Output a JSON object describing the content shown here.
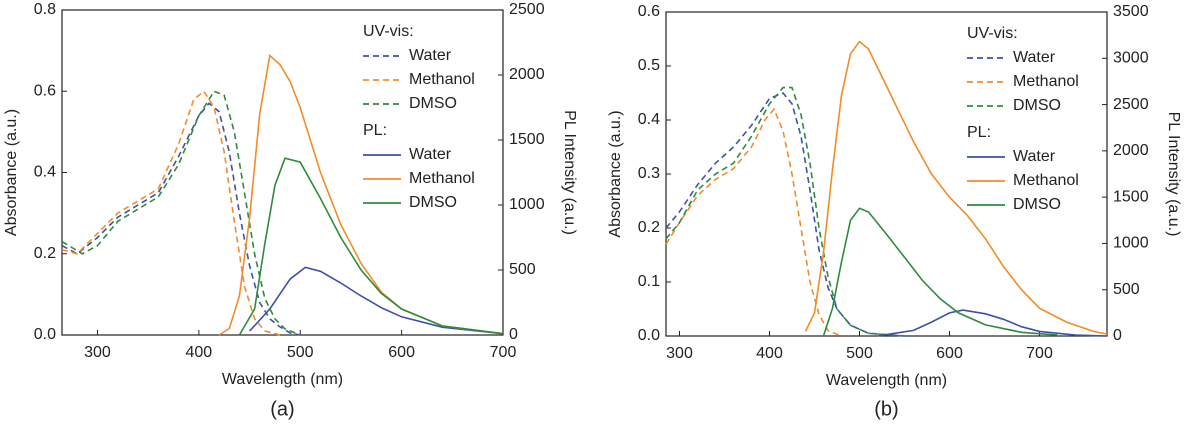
{
  "chart_data": [
    {
      "type": "line",
      "caption": "(a)",
      "x_label": "Wavelength (nm)",
      "y_label": "Absorbance (a.u.)",
      "y2_label": "PL Intensity (a.u.)",
      "xlim": [
        265,
        700
      ],
      "xticks": [
        300,
        400,
        500,
        600,
        700
      ],
      "ylim": [
        0,
        0.8
      ],
      "yticks": [
        {
          "value": 0,
          "label": "0.0"
        },
        0.2,
        0.4,
        0.6,
        0.8
      ],
      "y2lim": [
        0,
        2500
      ],
      "y2ticks": [
        0,
        500,
        1000,
        1500,
        2000,
        2500
      ],
      "legend": "upper right",
      "legend_headings": [
        "UV-vis:",
        "PL:"
      ],
      "series": [
        {
          "name": "Water",
          "color": "#3f51a5",
          "dashed": true,
          "x": [
            265,
            280,
            300,
            320,
            340,
            360,
            380,
            400,
            410,
            420,
            430,
            440,
            450,
            460,
            470,
            480,
            490,
            500
          ],
          "values": [
            0.22,
            0.2,
            0.24,
            0.29,
            0.32,
            0.35,
            0.44,
            0.54,
            0.57,
            0.55,
            0.45,
            0.3,
            0.17,
            0.08,
            0.04,
            0.02,
            0.005,
            0
          ]
        },
        {
          "name": "Methanol",
          "color": "#f28c28",
          "dashed": true,
          "x": [
            265,
            280,
            300,
            320,
            340,
            360,
            380,
            395,
            405,
            415,
            425,
            435,
            445,
            455,
            465,
            480
          ],
          "values": [
            0.21,
            0.2,
            0.25,
            0.3,
            0.33,
            0.36,
            0.47,
            0.58,
            0.6,
            0.56,
            0.45,
            0.28,
            0.12,
            0.04,
            0.01,
            0
          ]
        },
        {
          "name": "DMSO",
          "color": "#2e8b3e",
          "dashed": true,
          "x": [
            265,
            285,
            300,
            320,
            340,
            360,
            380,
            400,
            415,
            425,
            435,
            445,
            455,
            465,
            475,
            485,
            500
          ],
          "values": [
            0.23,
            0.2,
            0.22,
            0.28,
            0.31,
            0.34,
            0.42,
            0.54,
            0.6,
            0.59,
            0.5,
            0.35,
            0.2,
            0.09,
            0.04,
            0.015,
            0
          ]
        },
        {
          "name": "Water",
          "color": "#3f51a5",
          "axis": "y2",
          "x": [
            450,
            470,
            490,
            505,
            520,
            540,
            560,
            580,
            600,
            640,
            700
          ],
          "values": [
            30,
            200,
            430,
            520,
            490,
            400,
            300,
            210,
            140,
            60,
            10
          ]
        },
        {
          "name": "Methanol",
          "color": "#f28c28",
          "axis": "y2",
          "x": [
            420,
            430,
            440,
            450,
            460,
            470,
            480,
            490,
            500,
            520,
            540,
            560,
            580,
            600,
            640,
            700
          ],
          "values": [
            0,
            50,
            300,
            900,
            1700,
            2150,
            2080,
            1950,
            1750,
            1250,
            850,
            550,
            330,
            200,
            70,
            10
          ]
        },
        {
          "name": "DMSO",
          "color": "#2e8b3e",
          "axis": "y2",
          "x": [
            440,
            455,
            465,
            475,
            485,
            500,
            520,
            540,
            560,
            580,
            600,
            640,
            700
          ],
          "values": [
            0,
            200,
            700,
            1150,
            1360,
            1330,
            1050,
            750,
            500,
            320,
            200,
            70,
            10
          ]
        }
      ]
    },
    {
      "type": "line",
      "caption": "(b)",
      "x_label": "Wavelength (nm)",
      "y_label": "Absorbance (a.u.)",
      "y2_label": "PL Intensity (a.u.)",
      "xlim": [
        285,
        775
      ],
      "xticks": [
        300,
        400,
        500,
        600,
        700
      ],
      "ylim": [
        0,
        0.6
      ],
      "yticks": [
        {
          "value": 0,
          "label": "0.0"
        },
        0.1,
        0.2,
        0.3,
        0.4,
        0.5,
        0.6
      ],
      "y2lim": [
        0,
        3500
      ],
      "y2ticks": [
        0,
        500,
        1000,
        1500,
        2000,
        2500,
        3000,
        3500
      ],
      "legend": "upper right",
      "legend_headings": [
        "UV-vis:",
        "PL:"
      ],
      "series": [
        {
          "name": "Water",
          "color": "#3f51a5",
          "dashed": true,
          "x": [
            285,
            300,
            320,
            340,
            360,
            380,
            400,
            415,
            425,
            435,
            445,
            455,
            465,
            475,
            490,
            510,
            550
          ],
          "values": [
            0.2,
            0.23,
            0.28,
            0.32,
            0.35,
            0.39,
            0.44,
            0.45,
            0.43,
            0.37,
            0.27,
            0.16,
            0.09,
            0.05,
            0.02,
            0.005,
            0
          ]
        },
        {
          "name": "Methanol",
          "color": "#f28c28",
          "dashed": true,
          "x": [
            285,
            300,
            320,
            340,
            360,
            380,
            395,
            405,
            415,
            425,
            435,
            445,
            455,
            465,
            480
          ],
          "values": [
            0.17,
            0.21,
            0.26,
            0.29,
            0.31,
            0.35,
            0.4,
            0.42,
            0.38,
            0.3,
            0.2,
            0.1,
            0.04,
            0.01,
            0
          ]
        },
        {
          "name": "DMSO",
          "color": "#2e8b3e",
          "dashed": true,
          "x": [
            285,
            300,
            320,
            340,
            360,
            380,
            400,
            415,
            425,
            435,
            445,
            455,
            465,
            475,
            490,
            510,
            550
          ],
          "values": [
            0.18,
            0.21,
            0.27,
            0.3,
            0.32,
            0.37,
            0.43,
            0.46,
            0.46,
            0.41,
            0.32,
            0.2,
            0.11,
            0.05,
            0.02,
            0.005,
            0
          ]
        },
        {
          "name": "Water",
          "color": "#3f51a5",
          "axis": "y2",
          "x": [
            520,
            560,
            580,
            600,
            615,
            640,
            660,
            680,
            700,
            740,
            775
          ],
          "values": [
            0,
            60,
            150,
            250,
            280,
            240,
            180,
            100,
            50,
            10,
            0
          ]
        },
        {
          "name": "Methanol",
          "color": "#f28c28",
          "axis": "y2",
          "x": [
            440,
            450,
            460,
            470,
            480,
            490,
            500,
            510,
            520,
            540,
            560,
            580,
            600,
            620,
            640,
            660,
            680,
            700,
            730,
            760,
            775
          ],
          "values": [
            50,
            250,
            900,
            1800,
            2600,
            3050,
            3180,
            3100,
            2900,
            2500,
            2100,
            1750,
            1500,
            1300,
            1050,
            750,
            500,
            300,
            150,
            50,
            20
          ]
        },
        {
          "name": "DMSO",
          "color": "#2e8b3e",
          "axis": "y2",
          "x": [
            460,
            470,
            480,
            490,
            500,
            510,
            530,
            550,
            570,
            590,
            610,
            640,
            680,
            720
          ],
          "values": [
            0,
            300,
            800,
            1250,
            1380,
            1340,
            1100,
            850,
            600,
            400,
            250,
            120,
            40,
            10
          ]
        }
      ]
    }
  ]
}
